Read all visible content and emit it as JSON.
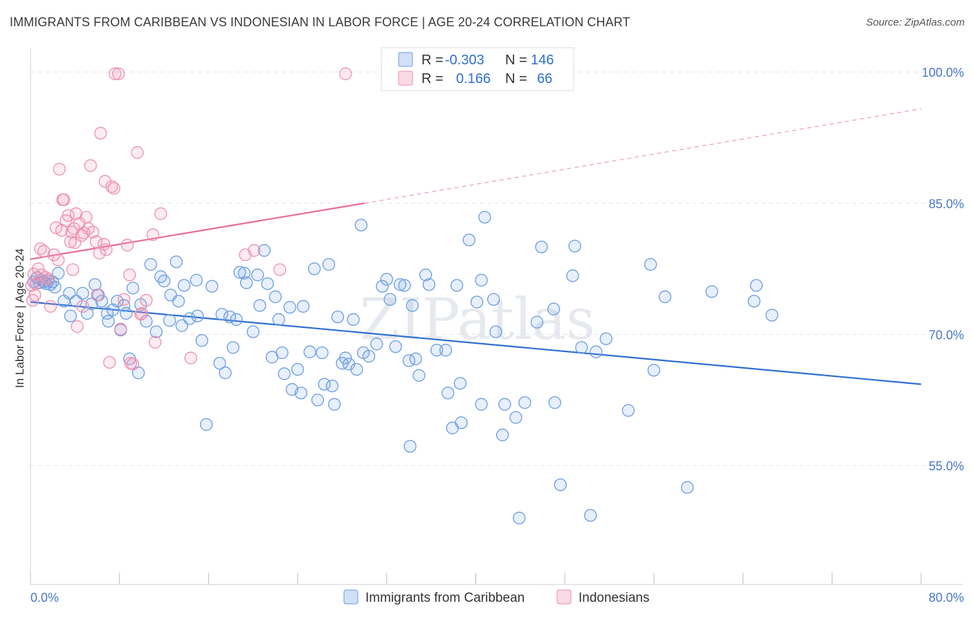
{
  "title": "IMMIGRANTS FROM CARIBBEAN VS INDONESIAN IN LABOR FORCE | AGE 20-24 CORRELATION CHART",
  "source": "Source: ZipAtlas.com",
  "watermark": "ZIPatlas",
  "colors": {
    "blue": "#6a9de0",
    "blue_fill": "rgba(120,165,230,0.18)",
    "blue_line": "#2f6fd0",
    "pink": "#ee8fb0",
    "pink_fill": "rgba(240,150,180,0.18)",
    "pink_line": "#e86a95",
    "tick": "#4a78c8",
    "grid": "#e3e3e3"
  },
  "legend_top": {
    "r_label": "R =",
    "n_label": "N =",
    "rows": [
      {
        "series": "Immigrants from Caribbean",
        "r": "-0.303",
        "n": "146"
      },
      {
        "series": "Indonesians",
        "r": "0.166",
        "n": "66"
      }
    ]
  },
  "chart_data": {
    "type": "scatter",
    "title": "IMMIGRANTS FROM CARIBBEAN VS INDONESIAN IN LABOR FORCE | AGE 20-24 CORRELATION CHART",
    "xlabel": "",
    "ylabel": "In Labor Force | Age 20-24",
    "xlim": [
      0,
      80
    ],
    "ylim": [
      41.4,
      102.7
    ],
    "x_tick_labels": [
      "0.0%",
      "80.0%"
    ],
    "y_ticks": [
      55.0,
      70.0,
      85.0,
      100.0
    ],
    "y_tick_labels": [
      "55.0%",
      "70.0%",
      "85.0%",
      "100.0%"
    ],
    "grid": "horizontal dashed",
    "legend_placement": "bottom-center",
    "series": [
      {
        "name": "Immigrants from Caribbean",
        "color": "#6a9de0",
        "trend": {
          "x": [
            0,
            80
          ],
          "y": [
            73.7,
            64.3
          ],
          "style": "solid"
        },
        "points": [
          [
            0.3,
            76.0
          ],
          [
            0.5,
            75.8
          ],
          [
            0.6,
            76.5
          ],
          [
            0.8,
            75.9
          ],
          [
            1.0,
            76.2
          ],
          [
            1.2,
            76.0
          ],
          [
            1.4,
            75.8
          ],
          [
            1.6,
            76.1
          ],
          [
            1.8,
            75.7
          ],
          [
            2.0,
            76.0
          ],
          [
            2.2,
            75.4
          ],
          [
            2.5,
            77.0
          ],
          [
            3.0,
            73.8
          ],
          [
            3.5,
            74.7
          ],
          [
            3.6,
            72.1
          ],
          [
            4.1,
            73.8
          ],
          [
            4.7,
            74.7
          ],
          [
            5.1,
            72.4
          ],
          [
            5.5,
            73.5
          ],
          [
            5.8,
            75.7
          ],
          [
            6.1,
            74.5
          ],
          [
            6.4,
            73.8
          ],
          [
            6.9,
            72.4
          ],
          [
            7.0,
            71.5
          ],
          [
            7.4,
            72.8
          ],
          [
            7.8,
            73.8
          ],
          [
            8.1,
            70.5
          ],
          [
            8.4,
            73.3
          ],
          [
            8.6,
            72.4
          ],
          [
            8.9,
            67.2
          ],
          [
            9.2,
            75.3
          ],
          [
            9.7,
            65.6
          ],
          [
            9.9,
            73.4
          ],
          [
            10.4,
            71.5
          ],
          [
            10.8,
            78.0
          ],
          [
            11.3,
            70.3
          ],
          [
            11.7,
            76.6
          ],
          [
            12.0,
            76.1
          ],
          [
            12.5,
            71.6
          ],
          [
            12.6,
            74.5
          ],
          [
            13.1,
            78.3
          ],
          [
            13.3,
            73.8
          ],
          [
            13.6,
            71.0
          ],
          [
            13.8,
            75.6
          ],
          [
            14.3,
            71.8
          ],
          [
            14.9,
            76.2
          ],
          [
            15.0,
            72.1
          ],
          [
            15.4,
            69.3
          ],
          [
            15.8,
            59.7
          ],
          [
            16.3,
            75.5
          ],
          [
            17.0,
            66.7
          ],
          [
            17.2,
            72.3
          ],
          [
            17.5,
            65.6
          ],
          [
            17.9,
            72.0
          ],
          [
            18.2,
            68.5
          ],
          [
            18.5,
            71.7
          ],
          [
            18.8,
            77.1
          ],
          [
            19.2,
            77.0
          ],
          [
            19.4,
            75.9
          ],
          [
            20.0,
            70.3
          ],
          [
            20.4,
            76.8
          ],
          [
            20.6,
            73.3
          ],
          [
            21.0,
            79.6
          ],
          [
            21.3,
            75.8
          ],
          [
            21.7,
            67.4
          ],
          [
            22.0,
            74.3
          ],
          [
            22.3,
            71.7
          ],
          [
            22.6,
            67.9
          ],
          [
            22.8,
            65.5
          ],
          [
            23.3,
            73.1
          ],
          [
            23.5,
            63.7
          ],
          [
            24.0,
            66.0
          ],
          [
            24.3,
            63.3
          ],
          [
            24.5,
            73.2
          ],
          [
            25.1,
            68.0
          ],
          [
            25.5,
            77.5
          ],
          [
            25.8,
            62.5
          ],
          [
            26.2,
            67.9
          ],
          [
            26.4,
            64.3
          ],
          [
            26.8,
            78.0
          ],
          [
            27.1,
            64.1
          ],
          [
            27.3,
            62.0
          ],
          [
            27.6,
            72.0
          ],
          [
            28.0,
            66.7
          ],
          [
            28.3,
            67.3
          ],
          [
            28.6,
            66.6
          ],
          [
            29.0,
            71.7
          ],
          [
            29.3,
            66.0
          ],
          [
            29.7,
            82.5
          ],
          [
            29.9,
            67.9
          ],
          [
            30.4,
            67.5
          ],
          [
            31.1,
            68.9
          ],
          [
            31.6,
            75.5
          ],
          [
            32.0,
            76.3
          ],
          [
            32.3,
            74.0
          ],
          [
            32.8,
            68.6
          ],
          [
            33.2,
            75.7
          ],
          [
            33.6,
            75.6
          ],
          [
            34.1,
            57.2
          ],
          [
            34.3,
            73.3
          ],
          [
            34.6,
            67.2
          ],
          [
            35.5,
            76.8
          ],
          [
            35.8,
            75.7
          ],
          [
            36.5,
            68.2
          ],
          [
            37.3,
            68.2
          ],
          [
            37.5,
            63.3
          ],
          [
            37.9,
            59.3
          ],
          [
            38.3,
            75.6
          ],
          [
            38.6,
            64.4
          ],
          [
            39.4,
            80.8
          ],
          [
            40.1,
            73.7
          ],
          [
            40.5,
            62.0
          ],
          [
            40.8,
            83.4
          ],
          [
            41.6,
            74.0
          ],
          [
            41.8,
            70.3
          ],
          [
            42.4,
            58.5
          ],
          [
            42.6,
            62.0
          ],
          [
            43.6,
            60.5
          ],
          [
            44.4,
            62.2
          ],
          [
            45.5,
            71.4
          ],
          [
            45.9,
            80.0
          ],
          [
            47.0,
            72.9
          ],
          [
            47.1,
            62.2
          ],
          [
            47.6,
            52.8
          ],
          [
            48.7,
            76.7
          ],
          [
            48.9,
            80.1
          ],
          [
            49.5,
            68.5
          ],
          [
            50.3,
            49.3
          ],
          [
            50.8,
            68.0
          ],
          [
            51.7,
            69.5
          ],
          [
            53.7,
            61.3
          ],
          [
            55.7,
            78.0
          ],
          [
            56.0,
            65.9
          ],
          [
            57.0,
            74.3
          ],
          [
            59.0,
            52.5
          ],
          [
            61.2,
            74.9
          ],
          [
            65.0,
            73.8
          ],
          [
            65.2,
            75.6
          ],
          [
            66.6,
            72.2
          ],
          [
            40.5,
            76.2
          ],
          [
            43.9,
            49.0
          ],
          [
            38.7,
            59.9
          ],
          [
            34.9,
            65.3
          ],
          [
            34.0,
            67.0
          ]
        ]
      },
      {
        "name": "Indonesians",
        "color": "#ee8fb0",
        "trend": {
          "x": [
            0,
            30
          ],
          "y": [
            78.6,
            85.0
          ],
          "style": "solid",
          "extended": {
            "x": [
              30,
              80
            ],
            "y": [
              85.0,
              95.8
            ],
            "style": "dashed"
          }
        },
        "points": [
          [
            0.1,
            75.6
          ],
          [
            0.2,
            73.9
          ],
          [
            0.3,
            76.9
          ],
          [
            0.4,
            74.5
          ],
          [
            0.5,
            75.8
          ],
          [
            0.7,
            77.5
          ],
          [
            0.9,
            79.8
          ],
          [
            1.0,
            76.8
          ],
          [
            1.2,
            79.5
          ],
          [
            1.4,
            76.5
          ],
          [
            1.6,
            76.3
          ],
          [
            1.8,
            73.2
          ],
          [
            2.1,
            79.1
          ],
          [
            2.3,
            82.2
          ],
          [
            2.5,
            78.5
          ],
          [
            2.6,
            88.9
          ],
          [
            2.8,
            81.9
          ],
          [
            2.9,
            85.4
          ],
          [
            3.0,
            85.4
          ],
          [
            3.2,
            83.0
          ],
          [
            3.4,
            83.6
          ],
          [
            3.6,
            80.6
          ],
          [
            3.7,
            81.7
          ],
          [
            3.8,
            77.4
          ],
          [
            3.9,
            82.1
          ],
          [
            4.0,
            80.5
          ],
          [
            4.1,
            83.8
          ],
          [
            4.2,
            70.9
          ],
          [
            4.4,
            82.7
          ],
          [
            4.6,
            81.3
          ],
          [
            4.7,
            73.2
          ],
          [
            4.8,
            81.6
          ],
          [
            5.0,
            83.4
          ],
          [
            5.2,
            82.1
          ],
          [
            5.4,
            89.3
          ],
          [
            5.6,
            81.7
          ],
          [
            5.9,
            80.6
          ],
          [
            6.0,
            74.5
          ],
          [
            6.2,
            79.3
          ],
          [
            6.3,
            93.0
          ],
          [
            6.6,
            80.3
          ],
          [
            6.7,
            87.5
          ],
          [
            6.8,
            79.7
          ],
          [
            7.1,
            66.8
          ],
          [
            7.3,
            86.9
          ],
          [
            7.5,
            86.7
          ],
          [
            7.6,
            99.8
          ],
          [
            7.9,
            99.8
          ],
          [
            8.1,
            70.6
          ],
          [
            8.4,
            74.0
          ],
          [
            8.7,
            80.2
          ],
          [
            8.9,
            76.8
          ],
          [
            9.0,
            66.7
          ],
          [
            9.2,
            66.6
          ],
          [
            9.6,
            90.8
          ],
          [
            9.9,
            72.3
          ],
          [
            10.0,
            72.4
          ],
          [
            10.4,
            73.9
          ],
          [
            11.0,
            81.4
          ],
          [
            11.2,
            69.1
          ],
          [
            11.7,
            83.8
          ],
          [
            14.4,
            67.3
          ],
          [
            19.3,
            79.1
          ],
          [
            20.1,
            79.6
          ],
          [
            22.4,
            77.4
          ],
          [
            28.3,
            99.8
          ]
        ]
      }
    ]
  },
  "bottom_legend": [
    "Immigrants from Caribbean",
    "Indonesians"
  ]
}
